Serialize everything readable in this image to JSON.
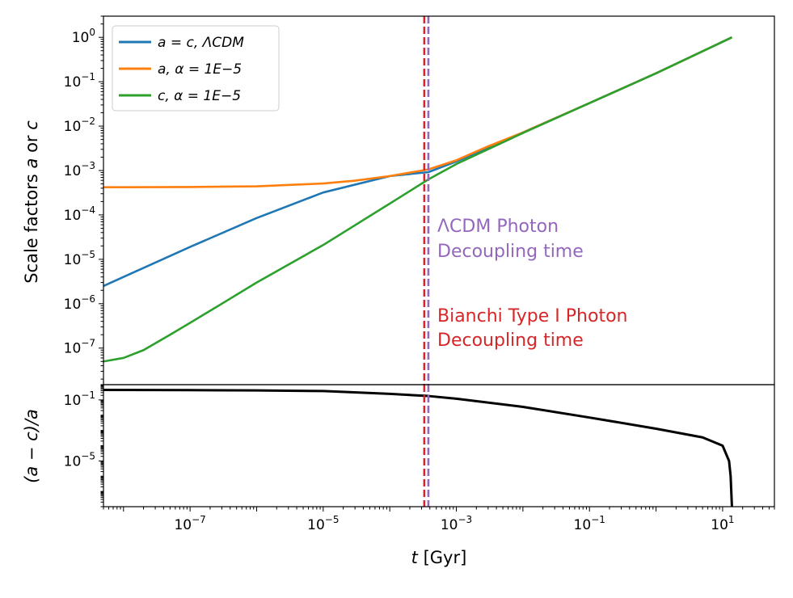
{
  "chart_data": [
    {
      "type": "line",
      "panel": "top",
      "ylabel": "Scale factors a or c",
      "yscale": "log",
      "xscale": "log",
      "xlim": [
        5e-09,
        60
      ],
      "ylim": [
        1.5e-08,
        3.0
      ],
      "yticks": [
        {
          "value": 1.0,
          "label": "10^0"
        },
        {
          "value": 0.1,
          "label": "10^-1"
        },
        {
          "value": 0.01,
          "label": "10^-2"
        },
        {
          "value": 0.001,
          "label": "10^-3"
        },
        {
          "value": 0.0001,
          "label": "10^-4"
        },
        {
          "value": 1e-05,
          "label": "10^-5"
        },
        {
          "value": 1e-06,
          "label": "10^-6"
        },
        {
          "value": 1e-07,
          "label": "10^-7"
        }
      ],
      "legend": {
        "placement": "top-left",
        "entries": [
          "a = c, ΛCDM",
          "a, α = 1E−5",
          "c, α = 1E−5"
        ]
      },
      "series": [
        {
          "name": "a = c, ΛCDM",
          "color": "#1f77b4",
          "x": [
            5e-09,
            1e-08,
            1e-07,
            1e-06,
            1e-05,
            0.0001,
            0.00038,
            0.001,
            0.01,
            0.1,
            1,
            13.8
          ],
          "y": [
            2.5e-06,
            4e-06,
            1.9e-05,
            8.5e-05,
            0.00032,
            0.00075,
            0.00092,
            0.0016,
            0.0072,
            0.033,
            0.155,
            1.0
          ]
        },
        {
          "name": "a, α = 1E−5",
          "color": "#ff7f0e",
          "x": [
            5e-09,
            1e-08,
            1e-07,
            1e-06,
            1e-05,
            3e-05,
            0.0001,
            0.00025,
            0.00038,
            0.001,
            0.003,
            0.01,
            0.1,
            1,
            13.8
          ],
          "y": [
            0.00042,
            0.00042,
            0.000425,
            0.00044,
            0.00051,
            0.00059,
            0.00075,
            0.00095,
            0.00106,
            0.0017,
            0.0035,
            0.0072,
            0.033,
            0.155,
            1.0
          ]
        },
        {
          "name": "c, α = 1E−5",
          "color": "#2ca02c",
          "x": [
            5e-09,
            1e-08,
            2e-08,
            5e-08,
            1e-07,
            3e-07,
            1e-06,
            1e-05,
            0.0001,
            0.00038,
            0.001,
            0.01,
            0.1,
            1,
            13.8
          ],
          "y": [
            5e-08,
            6e-08,
            9e-08,
            2e-07,
            3.7e-07,
            1e-06,
            3e-06,
            2.1e-05,
            0.00018,
            0.00063,
            0.0014,
            0.007,
            0.033,
            0.155,
            1.0
          ]
        }
      ]
    },
    {
      "type": "line",
      "panel": "bottom",
      "ylabel": "(a − c)/a",
      "xlabel": "t [Gyr]",
      "yscale": "log",
      "xscale": "log",
      "xlim": [
        5e-09,
        60
      ],
      "ylim": [
        1e-08,
        1.0
      ],
      "yticks": [
        {
          "value": 0.1,
          "label": "10^-1"
        },
        {
          "value": 1e-05,
          "label": "10^-5"
        }
      ],
      "xticks": [
        {
          "value": 1e-07,
          "label": "10^-7"
        },
        {
          "value": 1e-05,
          "label": "10^-5"
        },
        {
          "value": 0.001,
          "label": "10^-3"
        },
        {
          "value": 0.1,
          "label": "10^-1"
        },
        {
          "value": 10.0,
          "label": "10^1"
        }
      ],
      "series": [
        {
          "name": "(a − c)/a",
          "color": "#000000",
          "x": [
            5e-09,
            1e-07,
            1e-06,
            1e-05,
            0.0001,
            0.00038,
            0.001,
            0.01,
            0.1,
            1,
            5,
            10,
            12.5,
            13.2,
            13.8
          ],
          "y": [
            0.45,
            0.44,
            0.42,
            0.38,
            0.25,
            0.18,
            0.12,
            0.035,
            0.007,
            0.0013,
            0.00035,
            0.0001,
            1e-05,
            1e-06,
            1e-08
          ]
        }
      ]
    }
  ],
  "vlines": [
    {
      "x": 0.00033,
      "color": "#d62728",
      "label": "Bianchi Type I Photon Decoupling time",
      "line1": "Bianchi Type I Photon",
      "line2": "Decoupling time"
    },
    {
      "x": 0.00038,
      "color": "#9467bd",
      "label": "ΛCDM Photon Decoupling time",
      "line1": "ΛCDM Photon",
      "line2": "Decoupling time"
    }
  ],
  "labels": {
    "top_ylabel_prefix": "Scale factors ",
    "top_ylabel_a": "a",
    "top_ylabel_mid": " or ",
    "top_ylabel_c": "c",
    "bottom_ylabel": "(a − c)/a",
    "xlabel_var": "t",
    "xlabel_unit": " [Gyr]",
    "legend_1": "a = c, ΛCDM",
    "legend_2": "a, α = 1E−5",
    "legend_3": "c, α = 1E−5",
    "lcdm_line1": "ΛCDM Photon",
    "lcdm_line2": "Decoupling time",
    "bianchi_line1": "Bianchi Type I Photon",
    "bianchi_line2": "Decoupling time"
  }
}
